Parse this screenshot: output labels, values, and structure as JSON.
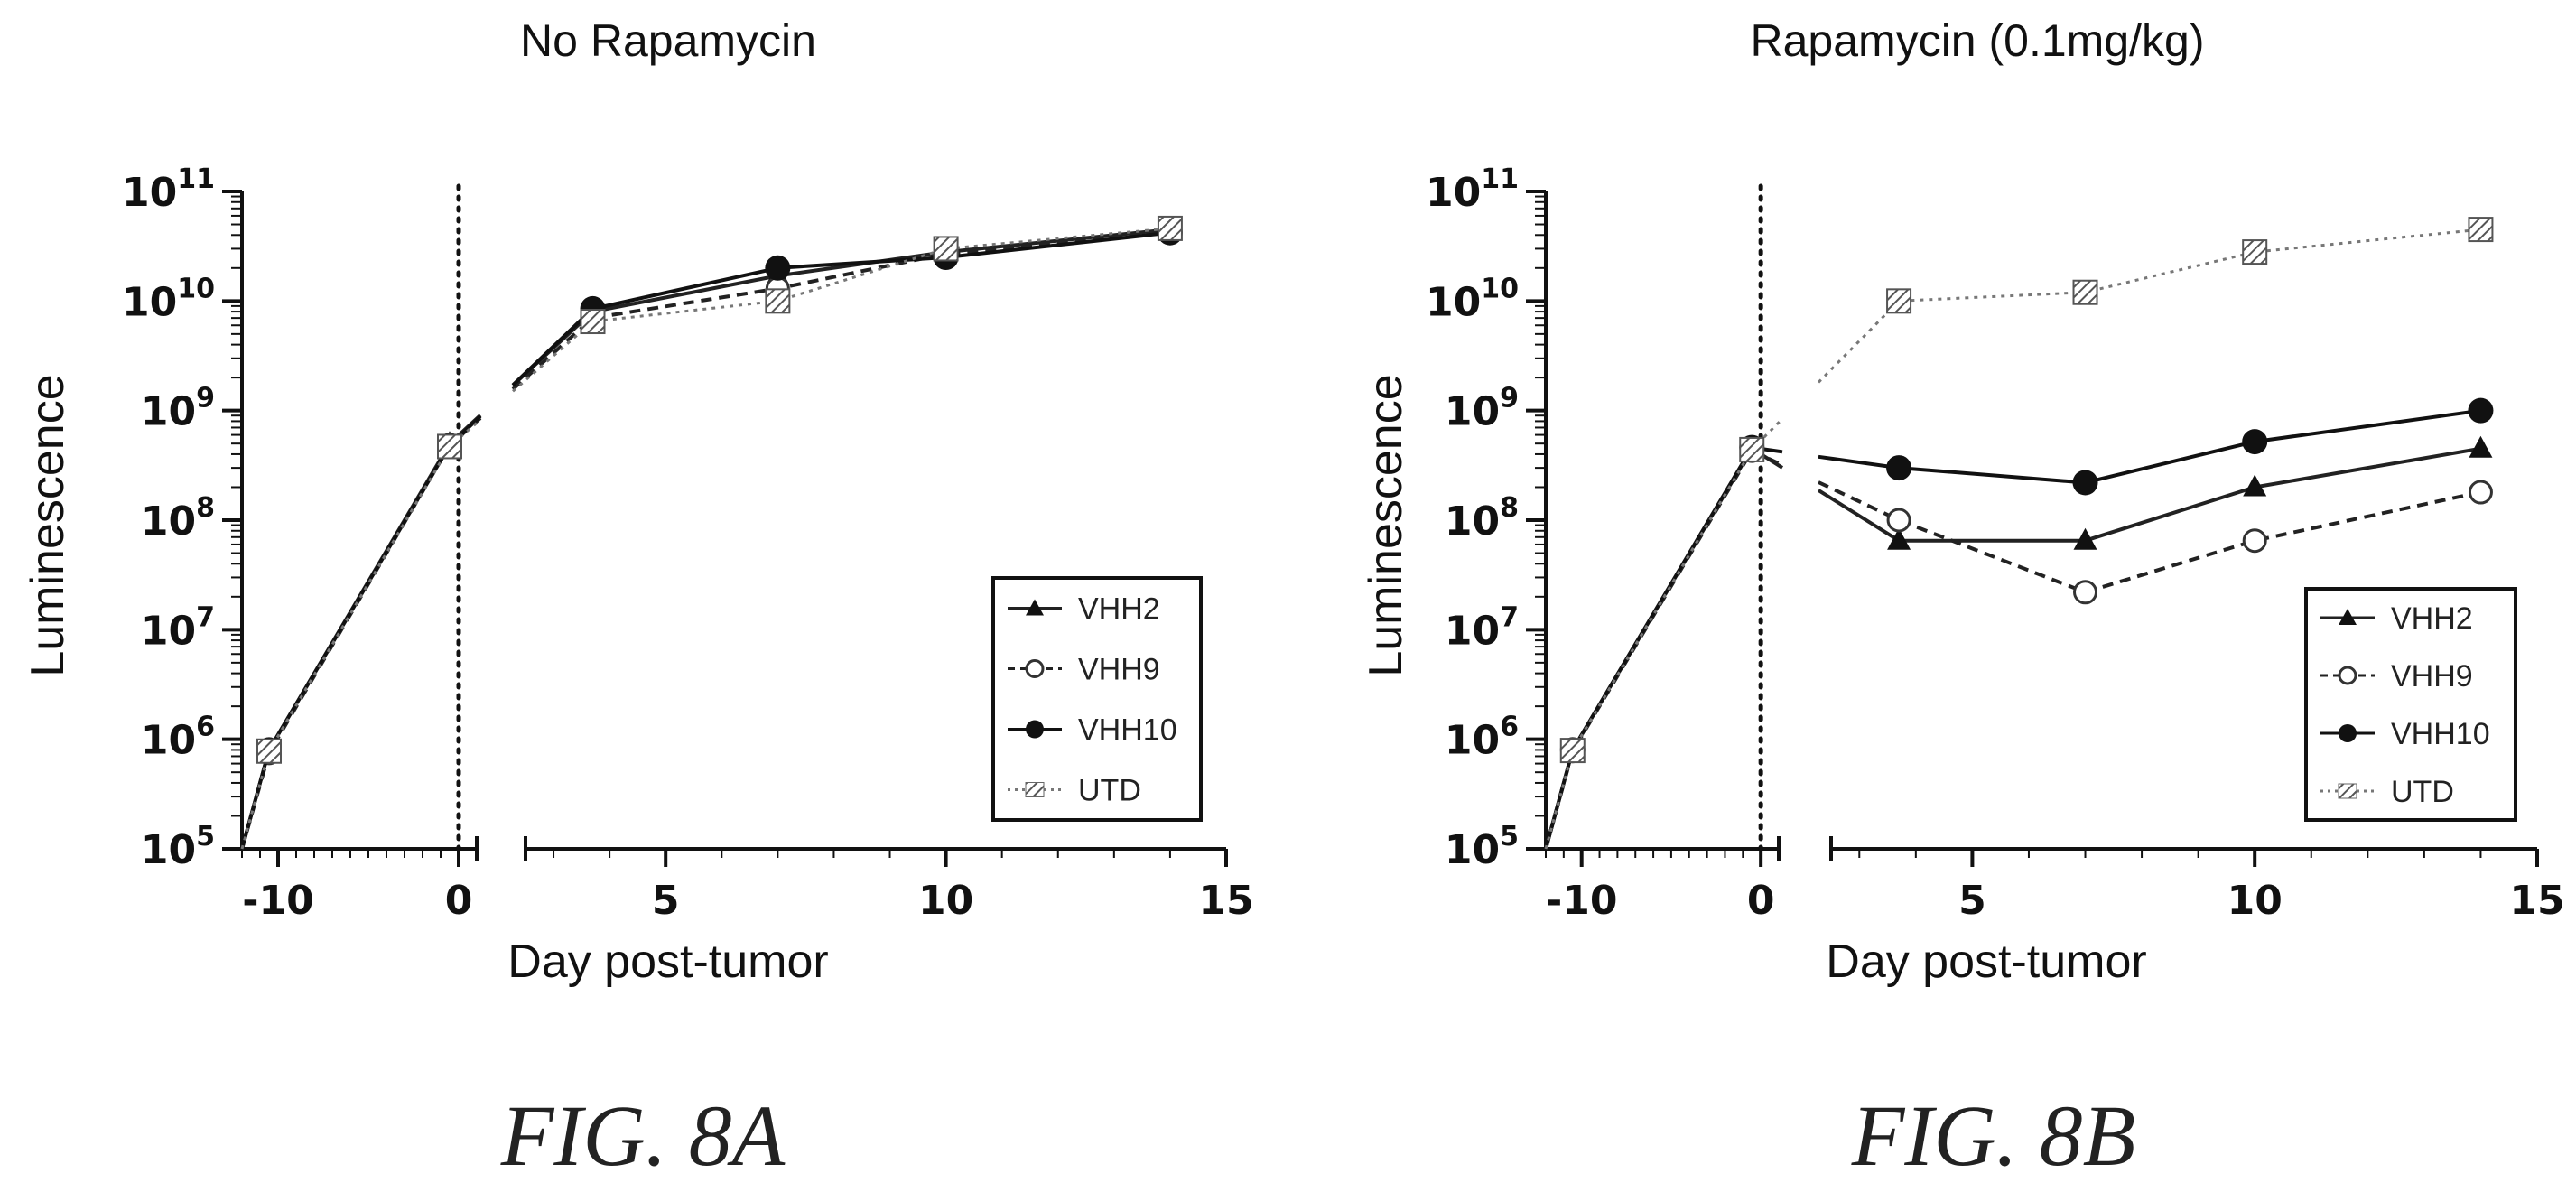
{
  "chart_data": [
    {
      "type": "line",
      "title": "No Rapamycin",
      "xlabel": "Day post-tumor",
      "ylabel": "Luminescence",
      "yscale": "log",
      "ylim": [
        100000,
        100000000000
      ],
      "xticks": [
        "-10",
        "0",
        "5",
        "10",
        "15"
      ],
      "yticks": [
        [
          "10",
          "5"
        ],
        [
          "10",
          "6"
        ],
        [
          "10",
          "7"
        ],
        [
          "10",
          "8"
        ],
        [
          "10",
          "9"
        ],
        [
          "10",
          "10"
        ],
        [
          "10",
          "11"
        ]
      ],
      "x_axis_break": true,
      "vertical_reference_line_at_x": 0,
      "legend_position": "bottom-right",
      "caption": "FIG. 8A",
      "series": [
        {
          "name": "VHH2",
          "marker": "triangle",
          "line": "solid",
          "color": "#222222",
          "x": [
            -10.5,
            -0.5,
            3.7,
            7,
            10,
            14
          ],
          "y": [
            800000,
            500000000,
            8000000000,
            17000000000,
            28000000000,
            45000000000
          ]
        },
        {
          "name": "VHH9",
          "marker": "open-circle",
          "line": "dashed",
          "color": "#222222",
          "x": [
            -10.5,
            -0.5,
            3.7,
            7,
            10,
            14
          ],
          "y": [
            750000,
            480000000,
            7000000000,
            13000000000,
            27000000000,
            43000000000
          ]
        },
        {
          "name": "VHH10",
          "marker": "filled-circle",
          "line": "solid",
          "color": "#111111",
          "x": [
            -10.5,
            -0.5,
            3.7,
            7,
            10,
            14
          ],
          "y": [
            800000,
            480000000,
            8500000000,
            20000000000,
            25000000000,
            42000000000
          ]
        },
        {
          "name": "UTD",
          "marker": "hatched-square",
          "line": "dotted",
          "color": "#777777",
          "x": [
            -10.5,
            -0.5,
            3.7,
            7,
            10,
            14
          ],
          "y": [
            780000,
            470000000,
            6500000000,
            10000000000,
            30000000000,
            46000000000
          ]
        }
      ]
    },
    {
      "type": "line",
      "title": "Rapamycin (0.1mg/kg)",
      "xlabel": "Day post-tumor",
      "ylabel": "Luminescence",
      "yscale": "log",
      "ylim": [
        100000,
        100000000000
      ],
      "xticks": [
        "-10",
        "0",
        "5",
        "10",
        "15"
      ],
      "yticks": [
        [
          "10",
          "5"
        ],
        [
          "10",
          "6"
        ],
        [
          "10",
          "7"
        ],
        [
          "10",
          "8"
        ],
        [
          "10",
          "9"
        ],
        [
          "10",
          "10"
        ],
        [
          "10",
          "11"
        ]
      ],
      "x_axis_break": true,
      "vertical_reference_line_at_x": 0,
      "legend_position": "bottom-right",
      "caption": "FIG. 8B",
      "series": [
        {
          "name": "VHH2",
          "marker": "triangle",
          "line": "solid",
          "color": "#222222",
          "x": [
            -10.5,
            -0.5,
            3.7,
            7,
            10,
            14
          ],
          "y": [
            800000,
            450000000,
            65000000,
            65000000,
            200000000,
            450000000
          ]
        },
        {
          "name": "VHH9",
          "marker": "open-circle",
          "line": "dashed",
          "color": "#222222",
          "x": [
            -10.5,
            -0.5,
            3.7,
            7,
            10,
            14
          ],
          "y": [
            780000,
            430000000,
            100000000,
            22000000,
            65000000,
            180000000
          ]
        },
        {
          "name": "VHH10",
          "marker": "filled-circle",
          "line": "solid",
          "color": "#111111",
          "x": [
            -10.5,
            -0.5,
            3.7,
            7,
            10,
            14
          ],
          "y": [
            800000,
            460000000,
            300000000,
            220000000,
            520000000,
            1000000000
          ]
        },
        {
          "name": "UTD",
          "marker": "hatched-square",
          "line": "dotted",
          "color": "#777777",
          "x": [
            -10.5,
            -0.5,
            3.7,
            7,
            10,
            14
          ],
          "y": [
            790000,
            440000000,
            10000000000,
            12000000000,
            28000000000,
            45000000000
          ]
        }
      ]
    }
  ]
}
